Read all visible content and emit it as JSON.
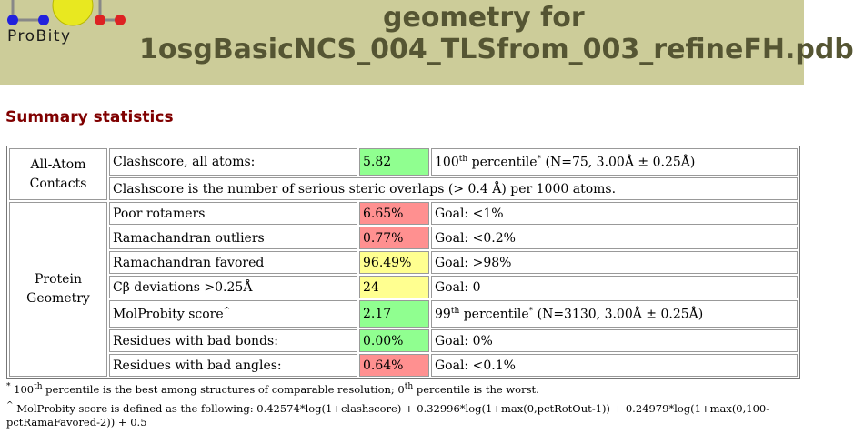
{
  "header": {
    "logo_text": "ProBity",
    "title_line1": "geometry for",
    "title_line2": "1osgBasicNCS_004_TLSfrom_003_refineFH.pdb",
    "bg_color": "#cccc99"
  },
  "section_title": "Summary statistics",
  "colors": {
    "good": "#90ff90",
    "bad": "#ff9090",
    "warn": "#ffff90"
  },
  "table": {
    "all_atom": {
      "label": "All-Atom Contacts",
      "clashscore": {
        "metric": "Clashscore, all atoms:",
        "value": "5.82",
        "pct_num": "100",
        "pct_suffix": "th",
        "pct_word": " percentile",
        "pct_note": " (N=75, 3.00Å ± 0.25Å)"
      },
      "clash_desc": "Clashscore is the number of serious steric overlaps (> 0.4 Å) per 1000 atoms."
    },
    "protein_geometry": {
      "label": "Protein Geometry",
      "rows": [
        {
          "metric": "Poor rotamers",
          "value": "6.65%",
          "goal": "Goal: <1%",
          "status": "bad"
        },
        {
          "metric": "Ramachandran outliers",
          "value": "0.77%",
          "goal": "Goal: <0.2%",
          "status": "bad"
        },
        {
          "metric": "Ramachandran favored",
          "value": "96.49%",
          "goal": "Goal: >98%",
          "status": "warn"
        },
        {
          "metric": "Cβ deviations >0.25Å",
          "value": "24",
          "goal": "Goal: 0",
          "status": "warn"
        }
      ],
      "molprobity": {
        "metric": "MolProbity score",
        "value": "2.17",
        "pct_num": "99",
        "pct_suffix": "th",
        "pct_word": " percentile",
        "pct_note": " (N=3130, 3.00Å ± 0.25Å)"
      },
      "rows2": [
        {
          "metric": "Residues with bad bonds:",
          "value": "0.00%",
          "goal": "Goal: 0%",
          "status": "good"
        },
        {
          "metric": "Residues with bad angles:",
          "value": "0.64%",
          "goal": "Goal: <0.1%",
          "status": "bad"
        }
      ]
    }
  },
  "footnotes": {
    "f1_a": " 100",
    "f1_sup": "th",
    "f1_b": " percentile is the best among structures of comparable resolution; 0",
    "f1_sup2": "th",
    "f1_c": " percentile is the worst.",
    "f2": " MolProbity score is defined as the following: 0.42574*log(1+clashscore) + 0.32996*log(1+max(0,pctRotOut-1)) + 0.24979*log(1+max(0,100-pctRamaFavored-2)) + 0.5"
  }
}
